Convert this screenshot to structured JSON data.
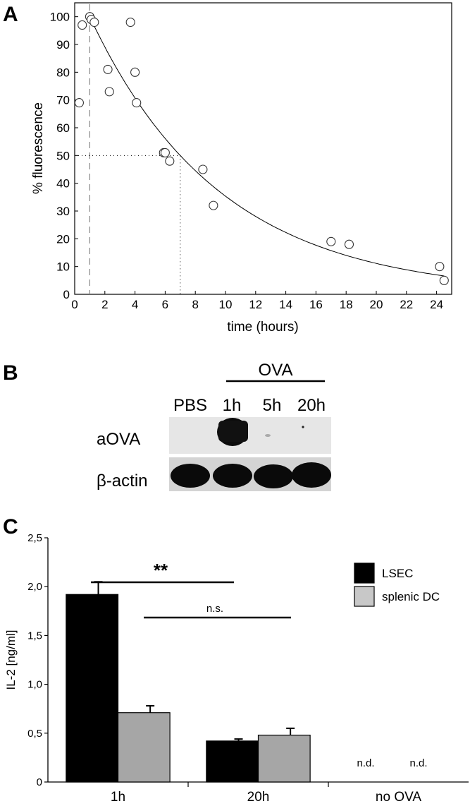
{
  "panels": {
    "a": {
      "letter": "A"
    },
    "b": {
      "letter": "B"
    },
    "c": {
      "letter": "C"
    }
  },
  "chart_data": [
    {
      "type": "scatter",
      "panel": "A",
      "xlabel": "time (hours)",
      "ylabel": "% fluorescence",
      "xlim": [
        0,
        25
      ],
      "ylim": [
        0,
        105
      ],
      "xticks": [
        0,
        2,
        4,
        6,
        8,
        10,
        12,
        14,
        16,
        18,
        20,
        22,
        24
      ],
      "yticks": [
        0,
        10,
        20,
        30,
        40,
        50,
        60,
        70,
        80,
        90,
        100
      ],
      "points": [
        {
          "x": 0.3,
          "y": 69
        },
        {
          "x": 0.5,
          "y": 97
        },
        {
          "x": 1.0,
          "y": 100
        },
        {
          "x": 1.1,
          "y": 99
        },
        {
          "x": 1.3,
          "y": 98
        },
        {
          "x": 2.2,
          "y": 81
        },
        {
          "x": 2.3,
          "y": 73
        },
        {
          "x": 3.7,
          "y": 98
        },
        {
          "x": 4.0,
          "y": 80
        },
        {
          "x": 4.1,
          "y": 69
        },
        {
          "x": 5.9,
          "y": 51
        },
        {
          "x": 6.0,
          "y": 51
        },
        {
          "x": 6.3,
          "y": 48
        },
        {
          "x": 8.5,
          "y": 45
        },
        {
          "x": 9.2,
          "y": 32
        },
        {
          "x": 17.0,
          "y": 19
        },
        {
          "x": 18.2,
          "y": 18
        },
        {
          "x": 24.2,
          "y": 10
        },
        {
          "x": 24.5,
          "y": 5
        }
      ],
      "fit": {
        "type": "exponential_decay",
        "x0": 1,
        "y0": 100,
        "half_life": 6,
        "x_end": 24.5
      },
      "reference_lines": {
        "dashed_vertical_x": 1,
        "half_value_y": 50,
        "half_value_x": 7
      }
    },
    {
      "type": "bar",
      "panel": "C",
      "ylabel": "IL-2 [ng/ml]",
      "ylim": [
        0,
        2.5
      ],
      "yticks": [
        "0",
        "0,5",
        "1,0",
        "1,5",
        "2,0",
        "2,5"
      ],
      "categories": [
        "1h",
        "20h",
        "no OVA"
      ],
      "series": [
        {
          "name": "LSEC",
          "values": [
            1.92,
            0.42,
            null
          ],
          "errors": [
            0.13,
            0.02,
            null
          ],
          "color": "#000000"
        },
        {
          "name": "splenic DC",
          "values": [
            0.71,
            0.48,
            null
          ],
          "errors": [
            0.07,
            0.07,
            null
          ],
          "color": "#a6a6a6"
        }
      ],
      "annotations": {
        "significance": "**",
        "not_significant": "n.s.",
        "not_determined": "n.d."
      },
      "legend_position": "top-right"
    }
  ],
  "blot": {
    "group_label": "OVA",
    "lanes": [
      "PBS",
      "1h",
      "5h",
      "20h"
    ],
    "rows": [
      "aOVA",
      "β-actin"
    ]
  }
}
